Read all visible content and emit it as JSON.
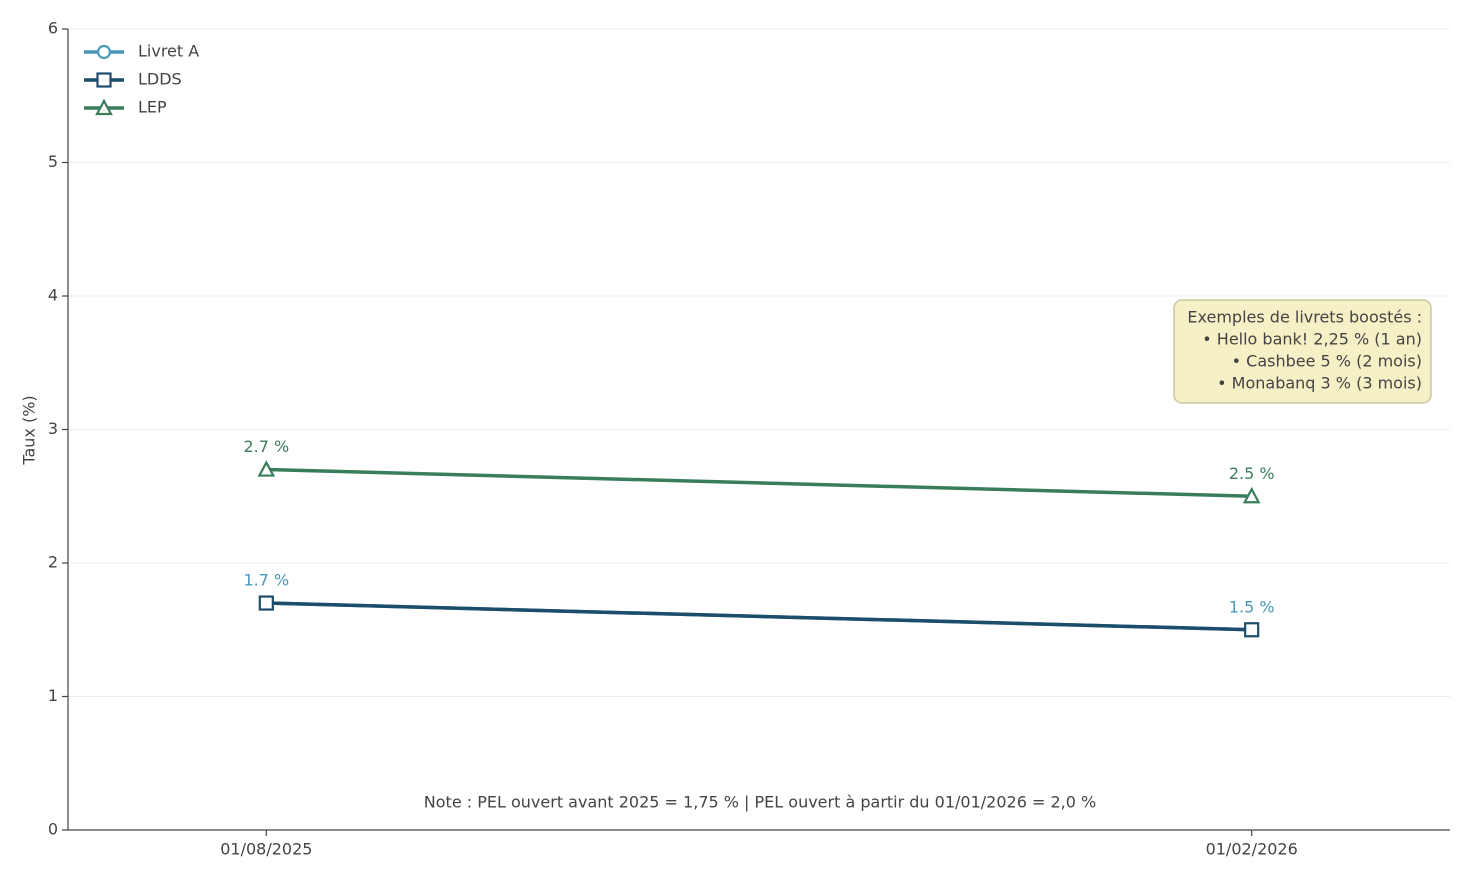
{
  "chart_data": {
    "type": "line",
    "y_label": "Taux (%)",
    "categories": [
      "01/08/2025",
      "01/02/2026"
    ],
    "series": [
      {
        "name": "Livret A",
        "color": "#4a98b8",
        "marker": "circle",
        "values": [
          1.7,
          1.5
        ],
        "value_labels": [
          "1.7 %",
          "1.5 %"
        ]
      },
      {
        "name": "LDDS",
        "color": "#1e4d6b",
        "marker": "square",
        "values": [
          1.7,
          1.5
        ]
      },
      {
        "name": "LEP",
        "color": "#3a7d5a",
        "marker": "triangle",
        "values": [
          2.7,
          2.5
        ],
        "value_labels": [
          "2.7 %",
          "2.5 %"
        ]
      }
    ],
    "ylim": [
      0,
      6
    ],
    "yticks": [
      0,
      1,
      2,
      3,
      4,
      5,
      6
    ],
    "grid": true,
    "legend": "upper-left",
    "annotation_box": [
      "Exemples de livrets boostés :",
      "• Hello bank! 2,25 % (1 an)",
      "• Cashbee 5 % (2 mois)",
      "• Monabanq 3 % (3 mois)"
    ],
    "note": "Note : PEL ouvert avant 2025 = 1,75 % | PEL ouvert à partir du 01/01/2026 = 2,0 %"
  }
}
